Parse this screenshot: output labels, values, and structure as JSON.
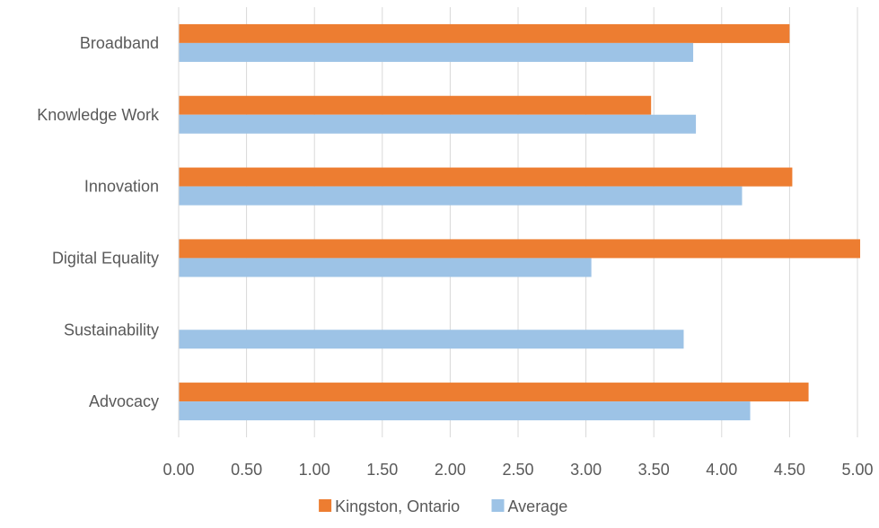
{
  "chart_data": {
    "type": "bar",
    "orientation": "horizontal",
    "title": "",
    "xlabel": "",
    "ylabel": "",
    "categories": [
      "Broadband",
      "Knowledge Work",
      "Innovation",
      "Digital Equality",
      "Sustainability",
      "Advocacy"
    ],
    "series": [
      {
        "name": "Kingston, Ontario",
        "color": "#ED7D31",
        "values": [
          4.5,
          3.48,
          4.52,
          5.02,
          null,
          4.64
        ]
      },
      {
        "name": "Average",
        "color": "#9DC3E6",
        "values": [
          3.79,
          3.81,
          4.15,
          3.04,
          3.72,
          4.21
        ]
      }
    ],
    "xlim": [
      0,
      5
    ],
    "xticks": [
      "0.00",
      "0.50",
      "1.00",
      "1.50",
      "2.00",
      "2.50",
      "3.00",
      "3.50",
      "4.00",
      "4.50",
      "5.00"
    ],
    "grid": true,
    "legend_position": "bottom"
  }
}
